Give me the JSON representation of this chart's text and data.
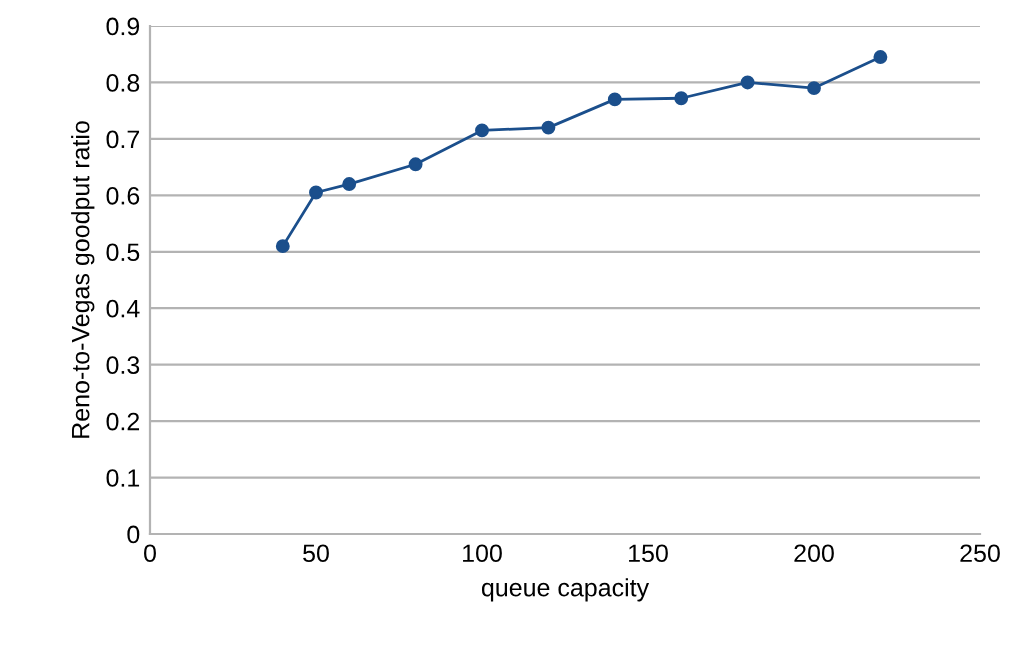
{
  "chart_data": {
    "type": "line",
    "xlabel": "queue capacity",
    "ylabel": "Reno-to-Vegas goodput ratio",
    "x": [
      40,
      50,
      60,
      80,
      100,
      120,
      140,
      160,
      180,
      200,
      220
    ],
    "series": [
      {
        "color": "#1b4f8c",
        "values": [
          0.51,
          0.605,
          0.62,
          0.655,
          0.715,
          0.72,
          0.77,
          0.772,
          0.8,
          0.79,
          0.845
        ]
      }
    ],
    "xlim": [
      0,
      250
    ],
    "xticks": [
      0,
      50,
      100,
      150,
      200,
      250
    ],
    "ylim": [
      0,
      0.9
    ],
    "yticks": [
      0,
      0.1,
      0.2,
      0.3,
      0.4,
      0.5,
      0.6,
      0.7,
      0.8,
      0.9
    ],
    "grid": "y",
    "marker": "circle",
    "line_style": "solid",
    "legend": false
  }
}
